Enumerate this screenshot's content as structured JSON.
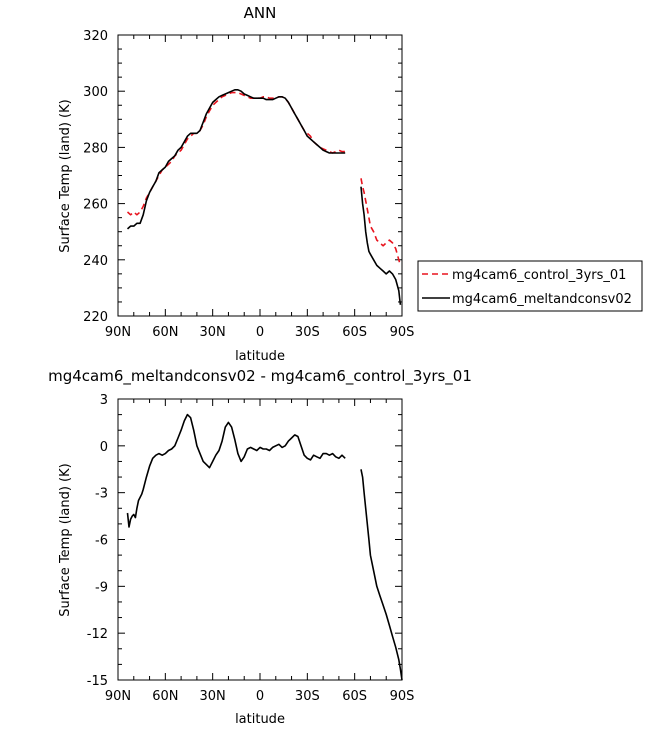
{
  "chart_data": [
    {
      "type": "line",
      "title": "ANN",
      "xlabel": "latitude",
      "ylabel": "Surface Temp (land) (K)",
      "xlim": [
        90,
        -90
      ],
      "ylim": [
        220,
        320
      ],
      "x_ticks": [
        90,
        60,
        30,
        0,
        -30,
        -60,
        -90
      ],
      "x_tick_labels": [
        "90N",
        "60N",
        "30N",
        "0",
        "30S",
        "60S",
        "90S"
      ],
      "y_ticks": [
        220,
        240,
        260,
        280,
        300,
        320
      ],
      "y_tick_labels": [
        "220",
        "240",
        "260",
        "280",
        "300",
        "320"
      ],
      "grid": false,
      "legend_position": "right, outside plot",
      "series": [
        {
          "name": "mg4cam6_control_3yrs_01",
          "color": "#e8141e",
          "dash": "dashed",
          "segments": [
            {
              "x": [
                84,
                82,
                80,
                78,
                76,
                74,
                72,
                70,
                68,
                66,
                64,
                62,
                60,
                58,
                56,
                54,
                52,
                50,
                48,
                46,
                44,
                42,
                40,
                38,
                36,
                34,
                32,
                30,
                28,
                26,
                24,
                22,
                20,
                18,
                16,
                14,
                12,
                10,
                8,
                6,
                4,
                2,
                0,
                -2,
                -4,
                -6,
                -8,
                -10,
                -12,
                -14,
                -16,
                -18,
                -20,
                -22,
                -24,
                -26,
                -28,
                -30,
                -32,
                -34,
                -36,
                -38,
                -40,
                -42,
                -44,
                -46,
                -48,
                -50,
                -52,
                -54
              ],
              "y": [
                257,
                256,
                257,
                256,
                257,
                259,
                262,
                264,
                266,
                268,
                270,
                272,
                273,
                274,
                275,
                277,
                278,
                279,
                281,
                283,
                284,
                285,
                285,
                286,
                288,
                291,
                293,
                295,
                296,
                297,
                298,
                298.5,
                299,
                299.5,
                299.5,
                299.5,
                299,
                298.5,
                298,
                297.5,
                297.5,
                297.5,
                297.5,
                298,
                298,
                297.5,
                297.5,
                297.5,
                298,
                298,
                297.5,
                296,
                294,
                292,
                290,
                288,
                286,
                285,
                284,
                282,
                281,
                280,
                279.5,
                279,
                278.5,
                278,
                278.5,
                279,
                278.5,
                278.5
              ]
            },
            {
              "x": [
                -64,
                -65,
                -66,
                -67,
                -68,
                -69,
                -70,
                -72,
                -74,
                -76,
                -78,
                -80,
                -82,
                -84,
                -86,
                -88,
                -89
              ],
              "y": [
                269,
                266,
                264,
                261,
                258,
                255,
                252,
                250,
                247,
                246,
                245,
                246,
                247,
                246,
                244,
                240,
                238
              ]
            }
          ]
        },
        {
          "name": "mg4cam6_meltandconsv02",
          "color": "#000000",
          "dash": "solid",
          "segments": [
            {
              "x": [
                84,
                82,
                80,
                78,
                76,
                74,
                72,
                70,
                68,
                66,
                64,
                62,
                60,
                58,
                56,
                54,
                52,
                50,
                48,
                46,
                44,
                42,
                40,
                38,
                36,
                34,
                32,
                30,
                28,
                26,
                24,
                22,
                20,
                18,
                16,
                14,
                12,
                10,
                8,
                6,
                4,
                2,
                0,
                -2,
                -4,
                -6,
                -8,
                -10,
                -12,
                -14,
                -16,
                -18,
                -20,
                -22,
                -24,
                -26,
                -28,
                -30,
                -32,
                -34,
                -36,
                -38,
                -40,
                -42,
                -44,
                -46,
                -48,
                -50,
                -52,
                -54
              ],
              "y": [
                251,
                252,
                252,
                253,
                253,
                256,
                261,
                264,
                266,
                268,
                271,
                272,
                273,
                275,
                276,
                277,
                279,
                280,
                282,
                284,
                285,
                285,
                285,
                286,
                289,
                292,
                294,
                296,
                297,
                298,
                298.5,
                299,
                299.5,
                300,
                300.5,
                300.5,
                300,
                299,
                298.5,
                298,
                297.5,
                297.5,
                297.5,
                297.5,
                297,
                297,
                297,
                297.5,
                298,
                298,
                297.5,
                296,
                294,
                292,
                290,
                288,
                286,
                284,
                283,
                282,
                281,
                280,
                279,
                278.5,
                278,
                278,
                278,
                278,
                278,
                278
              ]
            },
            {
              "x": [
                -64,
                -65,
                -66,
                -67,
                -68,
                -69,
                -70,
                -72,
                -74,
                -76,
                -78,
                -80,
                -82,
                -84,
                -86,
                -88,
                -89
              ],
              "y": [
                266,
                260,
                256,
                250,
                246,
                243,
                242,
                240,
                238,
                237,
                236,
                235,
                236,
                235,
                233,
                229,
                224
              ]
            }
          ]
        }
      ]
    },
    {
      "type": "line",
      "title": "mg4cam6_meltandconsv02 - mg4cam6_control_3yrs_01",
      "xlabel": "latitude",
      "ylabel": "Surface Temp (land) (K)",
      "xlim": [
        90,
        -90
      ],
      "ylim": [
        -15,
        3
      ],
      "x_ticks": [
        90,
        60,
        30,
        0,
        -30,
        -60,
        -90
      ],
      "x_tick_labels": [
        "90N",
        "60N",
        "30N",
        "0",
        "30S",
        "60S",
        "90S"
      ],
      "y_ticks": [
        -15,
        -12,
        -9,
        -6,
        -3,
        0,
        3
      ],
      "y_tick_labels": [
        "-15",
        "-12",
        "-9",
        "-6",
        "-3",
        "0",
        "3"
      ],
      "grid": false,
      "series": [
        {
          "color": "#000000",
          "dash": "solid",
          "segments": [
            {
              "x": [
                84,
                83,
                82,
                81,
                80,
                79,
                78,
                77,
                76,
                75,
                74,
                72,
                70,
                68,
                66,
                64,
                62,
                60,
                58,
                56,
                54,
                52,
                50,
                48,
                46,
                44,
                42,
                40,
                38,
                36,
                34,
                32,
                30,
                28,
                26,
                24,
                22,
                20,
                18,
                16,
                14,
                12,
                10,
                8,
                6,
                4,
                2,
                0,
                -2,
                -4,
                -6,
                -8,
                -10,
                -12,
                -14,
                -16,
                -18,
                -20,
                -22,
                -24,
                -26,
                -28,
                -30,
                -32,
                -34,
                -36,
                -38,
                -40,
                -42,
                -44,
                -46,
                -48,
                -50,
                -52,
                -54
              ],
              "y": [
                -4.3,
                -5.2,
                -4.7,
                -4.5,
                -4.4,
                -4.6,
                -4.0,
                -3.5,
                -3.3,
                -3.1,
                -2.8,
                -2.0,
                -1.3,
                -0.8,
                -0.6,
                -0.5,
                -0.6,
                -0.5,
                -0.3,
                -0.2,
                0.0,
                0.5,
                1.0,
                1.6,
                2.0,
                1.8,
                1.0,
                0.0,
                -0.5,
                -1.0,
                -1.2,
                -1.4,
                -1.0,
                -0.6,
                -0.3,
                0.3,
                1.2,
                1.5,
                1.2,
                0.4,
                -0.5,
                -1.0,
                -0.7,
                -0.2,
                -0.1,
                -0.2,
                -0.3,
                -0.1,
                -0.2,
                -0.2,
                -0.3,
                -0.1,
                0.0,
                0.1,
                -0.1,
                0.0,
                0.3,
                0.5,
                0.7,
                0.6,
                0.0,
                -0.6,
                -0.8,
                -0.9,
                -0.6,
                -0.7,
                -0.8,
                -0.5,
                -0.5,
                -0.6,
                -0.5,
                -0.7,
                -0.8,
                -0.6,
                -0.8
              ]
            },
            {
              "x": [
                -64,
                -65,
                -66,
                -67,
                -68,
                -69,
                -70,
                -72,
                -74,
                -76,
                -78,
                -80,
                -82,
                -84,
                -86,
                -88,
                -89,
                -90
              ],
              "y": [
                -1.5,
                -2.0,
                -3.0,
                -4.0,
                -5.0,
                -6.0,
                -7.0,
                -8.0,
                -9.0,
                -9.6,
                -10.2,
                -10.8,
                -11.5,
                -12.2,
                -12.9,
                -13.7,
                -14.3,
                -15.0
              ]
            }
          ]
        }
      ]
    }
  ]
}
